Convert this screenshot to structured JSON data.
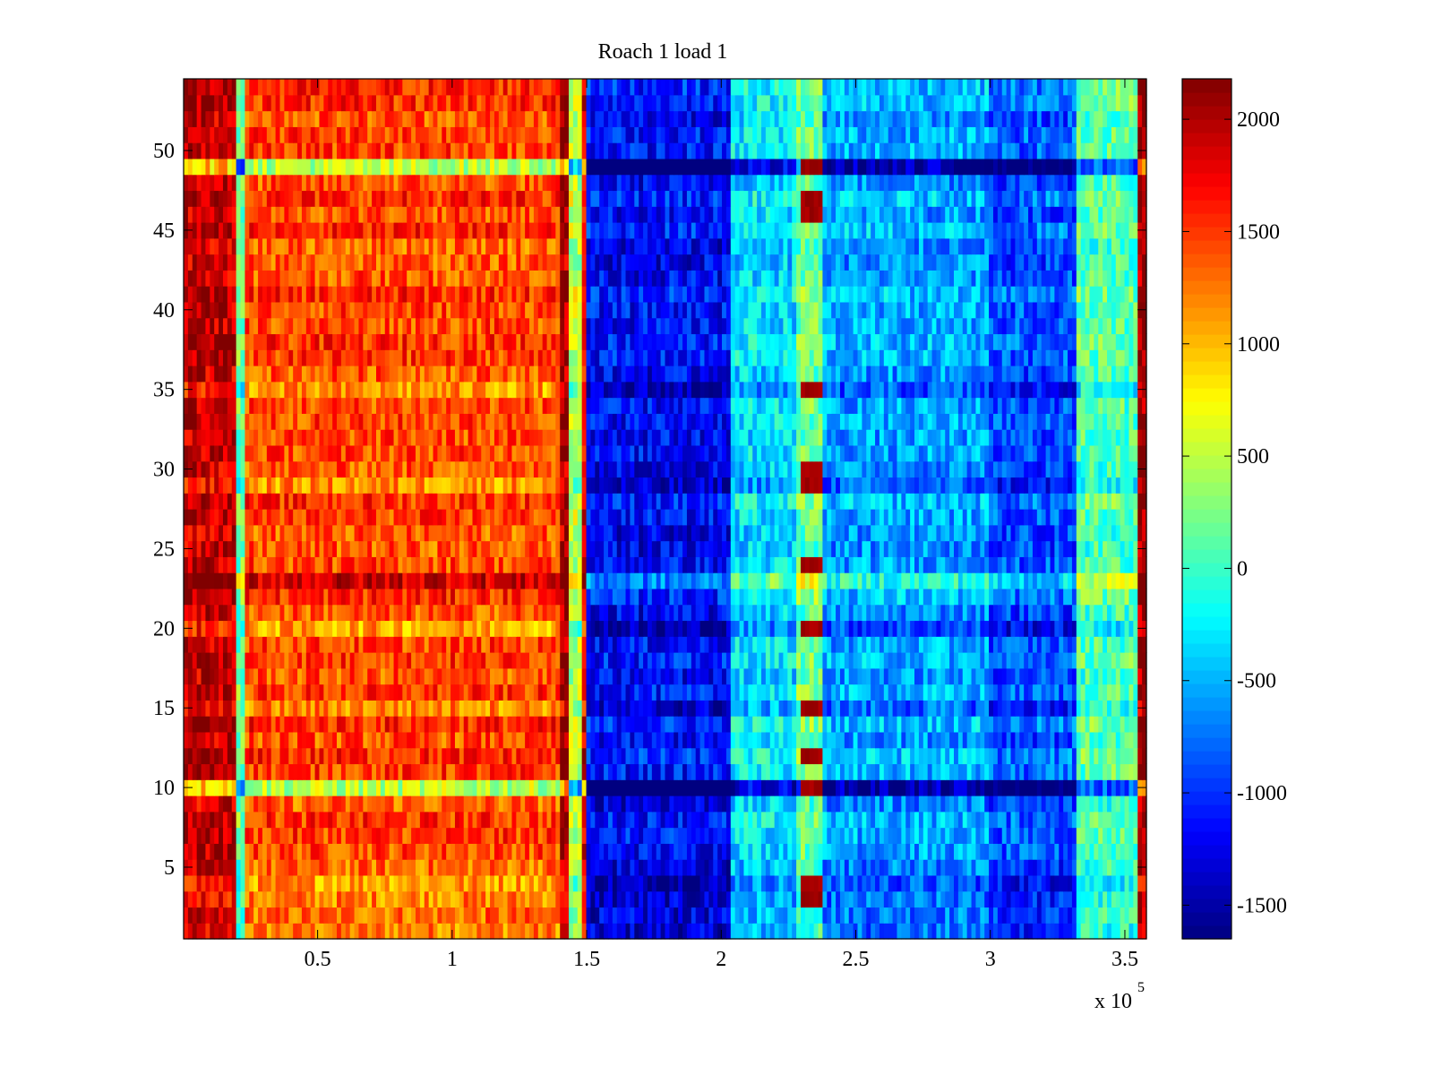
{
  "chart_data": {
    "type": "heatmap",
    "title": "Roach 1 load 1",
    "xlabel": "",
    "ylabel": "",
    "x_scale_label": "x 10",
    "x_scale_exponent": "5",
    "xlim": [
      0.002,
      3.58
    ],
    "ylim": [
      0.5,
      54.5
    ],
    "grid": false,
    "x_ticks": [
      {
        "value": 0.5,
        "label": "0.5"
      },
      {
        "value": 1,
        "label": "1"
      },
      {
        "value": 1.5,
        "label": "1.5"
      },
      {
        "value": 2,
        "label": "2"
      },
      {
        "value": 2.5,
        "label": "2.5"
      },
      {
        "value": 3,
        "label": "3"
      },
      {
        "value": 3.5,
        "label": "3.5"
      }
    ],
    "y_ticks": [
      {
        "value": 5,
        "label": "5"
      },
      {
        "value": 10,
        "label": "10"
      },
      {
        "value": 15,
        "label": "15"
      },
      {
        "value": 20,
        "label": "20"
      },
      {
        "value": 25,
        "label": "25"
      },
      {
        "value": 30,
        "label": "30"
      },
      {
        "value": 35,
        "label": "35"
      },
      {
        "value": 40,
        "label": "40"
      },
      {
        "value": 45,
        "label": "45"
      },
      {
        "value": 50,
        "label": "50"
      }
    ],
    "colorbar": {
      "colormap": "jet",
      "range": [
        -1650,
        2180
      ],
      "ticks": [
        {
          "value": 2000,
          "label": "2000"
        },
        {
          "value": 1500,
          "label": "1500"
        },
        {
          "value": 1000,
          "label": "1000"
        },
        {
          "value": 500,
          "label": "500"
        },
        {
          "value": 0,
          "label": "0"
        },
        {
          "value": -500,
          "label": "-500"
        },
        {
          "value": -1000,
          "label": "-1000"
        },
        {
          "value": -1500,
          "label": "-1500"
        }
      ]
    },
    "rows": 54,
    "column_bands": [
      {
        "x_start": 0.0,
        "x_end": 0.2,
        "value": 1950
      },
      {
        "x_start": 0.2,
        "x_end": 0.23,
        "value": 200
      },
      {
        "x_start": 0.23,
        "x_end": 1.4,
        "value": 1450
      },
      {
        "x_start": 1.4,
        "x_end": 1.43,
        "value": 2050
      },
      {
        "x_start": 1.43,
        "x_end": 1.48,
        "value": 500
      },
      {
        "x_start": 1.48,
        "x_end": 1.5,
        "value": 1800
      },
      {
        "x_start": 1.5,
        "x_end": 2.03,
        "value": -1150
      },
      {
        "x_start": 2.03,
        "x_end": 2.28,
        "value": -300
      },
      {
        "x_start": 2.28,
        "x_end": 2.38,
        "value": 200
      },
      {
        "x_start": 2.38,
        "x_end": 3.0,
        "value": -550
      },
      {
        "x_start": 3.0,
        "x_end": 3.32,
        "value": -850
      },
      {
        "x_start": 3.32,
        "x_end": 3.55,
        "value": 100
      },
      {
        "x_start": 3.55,
        "x_end": 3.58,
        "value": 2100
      }
    ],
    "row_offsets": [
      {
        "row": 49,
        "value": -900
      },
      {
        "row": 35,
        "value": -300
      },
      {
        "row": 29,
        "value": -300
      },
      {
        "row": 23,
        "value": 500
      },
      {
        "row": 20,
        "value": -450
      },
      {
        "row": 15,
        "value": -350
      },
      {
        "row": 10,
        "value": -900
      },
      {
        "row": 1,
        "value": -250
      },
      {
        "row": 2,
        "value": -250
      },
      {
        "row": 3,
        "value": -250
      },
      {
        "row": 4,
        "value": -250
      },
      {
        "row": 5,
        "value": -250
      }
    ],
    "hot_cells": [
      {
        "x_start": 2.29,
        "x_end": 2.38,
        "rows": [
          3,
          4,
          10,
          12,
          15,
          20,
          24,
          29,
          30,
          35,
          46,
          47,
          49
        ],
        "value": 2050
      }
    ]
  }
}
